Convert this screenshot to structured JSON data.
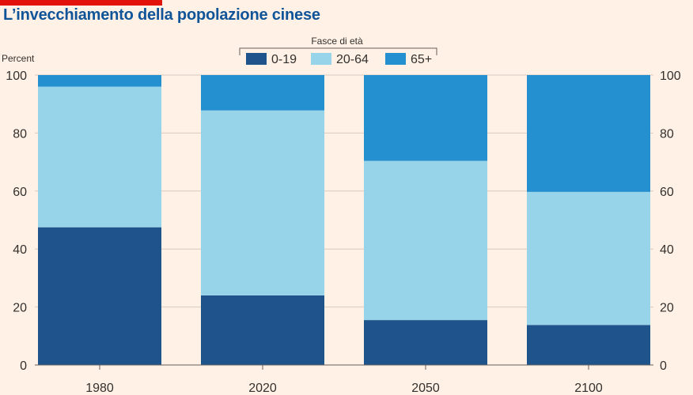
{
  "title": "L’invecchiamento della popolazione cinese",
  "colors": {
    "background": "#fff1e5",
    "accent": "#e3120b",
    "title": "#0f5499",
    "series": [
      "#1f538c",
      "#97d3e9",
      "#2490d0"
    ],
    "grid": "#d6cbc2",
    "axis_text": "#33302e"
  },
  "chart_data": {
    "type": "bar",
    "stacked": true,
    "title": "L’invecchiamento della popolazione cinese",
    "ylabel": "Percent",
    "legend_title": "Fasce di età",
    "legend_position": "top-center",
    "categories": [
      "1980",
      "2020",
      "2050",
      "2100"
    ],
    "series": [
      {
        "name": "0-19",
        "values": [
          47.5,
          24,
          15.5,
          13.8
        ]
      },
      {
        "name": "20-64",
        "values": [
          48.5,
          63.8,
          54.9,
          45.9
        ]
      },
      {
        "name": "65+",
        "values": [
          4,
          12.2,
          29.6,
          40.3
        ]
      }
    ],
    "ylim": [
      0,
      100
    ],
    "yticks": [
      0,
      20,
      40,
      60,
      80,
      100
    ],
    "grid": true,
    "y_axis_both_sides": true
  }
}
